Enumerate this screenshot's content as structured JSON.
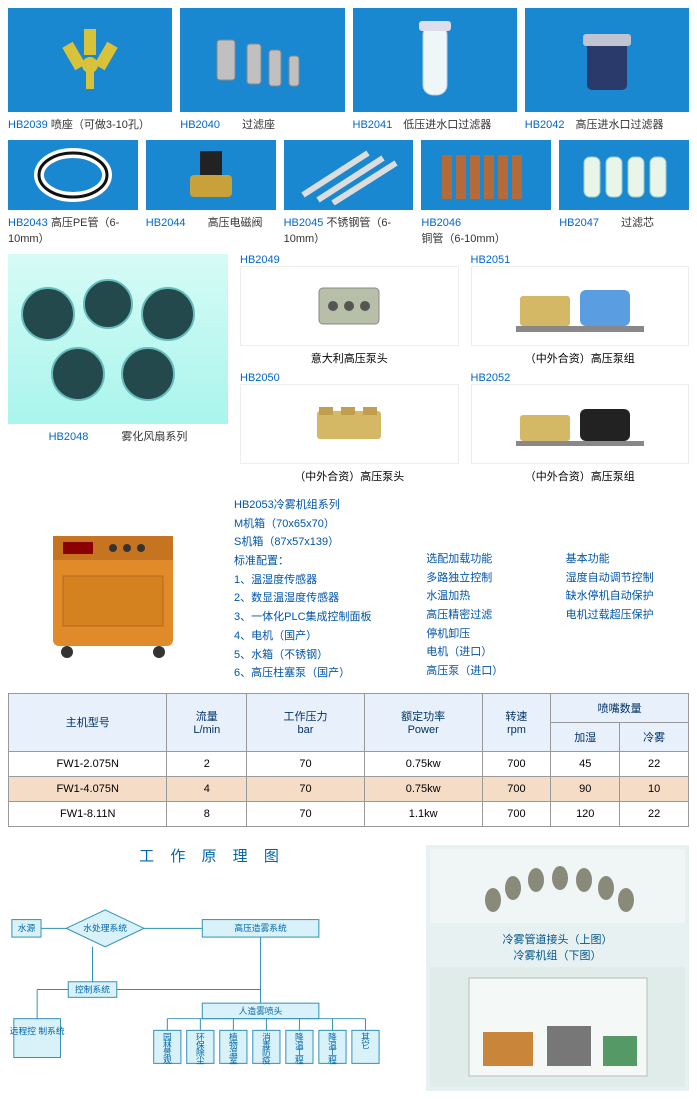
{
  "row1": [
    {
      "code": "HB2039",
      "name": "喷座（可做3-10孔）"
    },
    {
      "code": "HB2040",
      "name": "过滤座"
    },
    {
      "code": "HB2041",
      "name": "低压进水口过滤器"
    },
    {
      "code": "HB2042",
      "name": "高压进水口过滤器"
    }
  ],
  "row2": [
    {
      "code": "HB2043",
      "name": "高压PE管（6-10mm）"
    },
    {
      "code": "HB2044",
      "name": "高压电磁阀"
    },
    {
      "code": "HB2045",
      "name": "不锈钢管（6-10mm）"
    },
    {
      "code": "HB2046",
      "name": "铜管（6-10mm）"
    },
    {
      "code": "HB2047",
      "name": "过滤芯"
    }
  ],
  "fans": {
    "code": "HB2048",
    "name": "雾化风扇系列"
  },
  "pumps_left": [
    {
      "code": "HB2049",
      "name": "意大利高压泵头"
    },
    {
      "code": "HB2050",
      "name": "（中外合资）高压泵头"
    }
  ],
  "pumps_right": [
    {
      "code": "HB2051",
      "name": "（中外合资）高压泵组"
    },
    {
      "code": "HB2052",
      "name": "（中外合资）高压泵组"
    }
  ],
  "hb2053": {
    "title": "HB2053冷雾机组系列",
    "mbox": "M机箱（70x65x70）",
    "sbox": "S机箱（87x57x139）",
    "std_label": "标准配置：",
    "std": [
      "1、温湿度传感器",
      "2、数显温湿度传感器",
      "3、一体化PLC集成控制面板",
      "4、电机（国产）",
      "5、水箱（不锈钢）",
      "6、高压柱塞泵（国产）"
    ],
    "opt_label": "选配加载功能",
    "opt": [
      "多路独立控制",
      "水温加热",
      "高压精密过滤",
      "停机卸压",
      "电机（进口）",
      "高压泵（进口）"
    ],
    "base_label": "基本功能",
    "base": [
      "湿度自动调节控制",
      "缺水停机自动保护",
      "电机过载超压保护"
    ]
  },
  "table": {
    "headers": {
      "model": "主机型号",
      "flow": "流量\nL/min",
      "pressure": "工作压力\nbar",
      "power": "额定功率\nPower",
      "rpm": "转速\nrpm",
      "nozzle": "喷嘴数量",
      "humid": "加湿",
      "mist": "冷雾"
    },
    "rows": [
      {
        "model": "FW1-2.075N",
        "flow": "2",
        "pressure": "70",
        "power": "0.75kw",
        "rpm": "700",
        "humid": "45",
        "mist": "22",
        "hl": false
      },
      {
        "model": "FW1-4.075N",
        "flow": "4",
        "pressure": "70",
        "power": "0.75kw",
        "rpm": "700",
        "humid": "90",
        "mist": "10",
        "hl": true
      },
      {
        "model": "FW1-8.11N",
        "flow": "8",
        "pressure": "70",
        "power": "1.1kw",
        "rpm": "700",
        "humid": "120",
        "mist": "22",
        "hl": false
      }
    ]
  },
  "diagram": {
    "title": "工 作 原 理 图",
    "nodes": {
      "water_src": "水源",
      "water_treat": "水处理系统",
      "mist_sys": "高压造雾系统",
      "ctrl": "控制系统",
      "remote": "远程控\n制系统",
      "nozzle_sys": "人造雾喷头",
      "outlets": [
        "园林景观",
        "环保除尘",
        "植物温室",
        "消毒防疫",
        "降温工程",
        "降温工程",
        "其它"
      ]
    }
  },
  "photo": {
    "cap1": "冷雾管道接头（上图）",
    "cap2": "冷雾机组（下图）"
  }
}
